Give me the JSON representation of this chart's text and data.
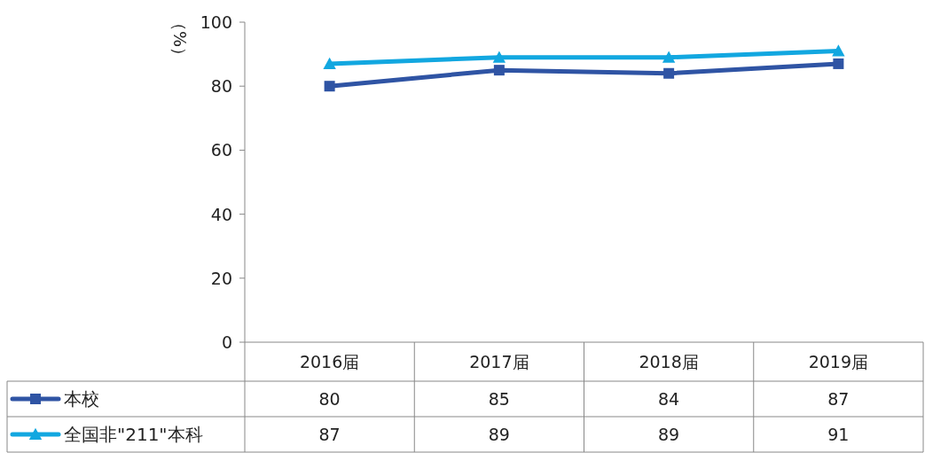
{
  "chart_data": {
    "type": "line",
    "ylabel": "（%）",
    "categories": [
      "2016届",
      "2017届",
      "2018届",
      "2019届"
    ],
    "series": [
      {
        "name": "本校",
        "color": "#2f54a4",
        "marker": "square",
        "values": [
          80,
          85,
          84,
          87
        ]
      },
      {
        "name": "全国非\"211\"本科",
        "color": "#12a7e0",
        "marker": "triangle",
        "values": [
          87,
          89,
          89,
          91
        ]
      }
    ],
    "ylim": [
      0,
      100
    ],
    "yticks": [
      0,
      20,
      40,
      60,
      80,
      100
    ],
    "data_labels": true,
    "legend": "left",
    "grid": false
  }
}
